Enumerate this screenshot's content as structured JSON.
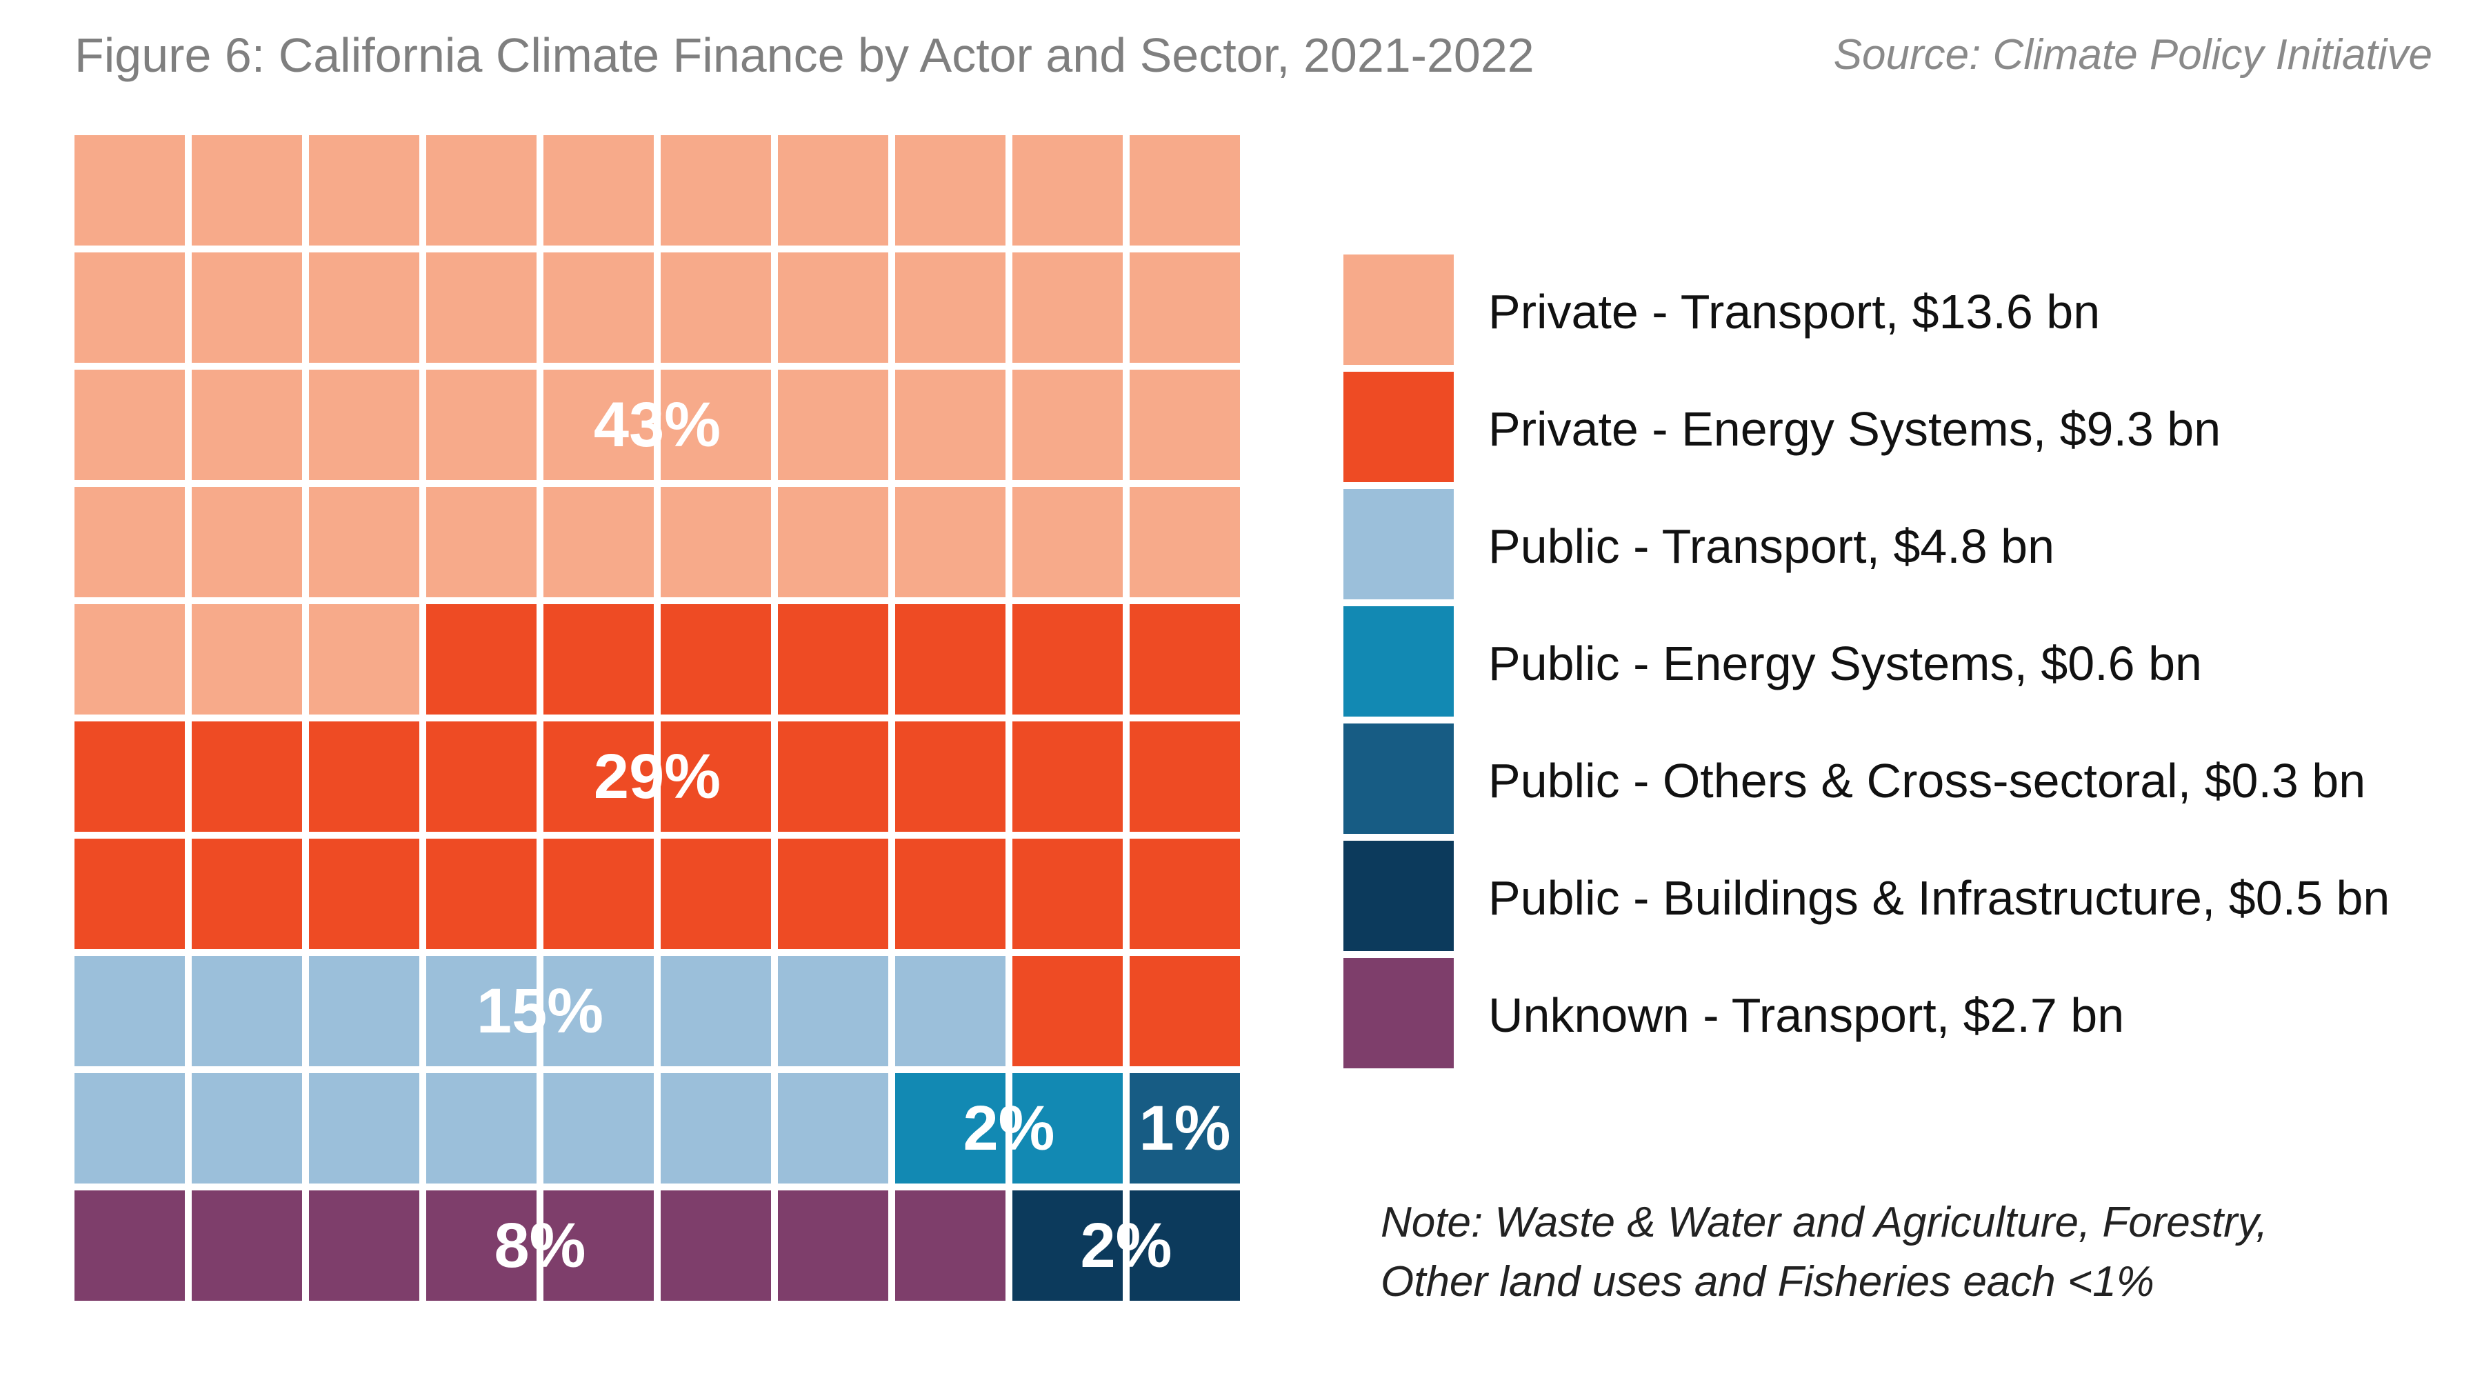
{
  "header": {
    "title": "Figure 6: California Climate Finance by Actor and Sector, 2021-2022",
    "source": "Source: Climate Policy Initiative"
  },
  "chart_data": {
    "type": "waffle",
    "grid": {
      "rows": 10,
      "cols": 10
    },
    "series": [
      {
        "name": "Private - Transport",
        "value_bn": 13.6,
        "units": 43,
        "percent_label": "43%",
        "color": "#f7aa8a",
        "legend_label": "Private - Transport, $13.6 bn"
      },
      {
        "name": "Private - Energy Systems",
        "value_bn": 9.3,
        "units": 29,
        "percent_label": "29%",
        "color": "#ee4b24",
        "legend_label": "Private - Energy Systems, $9.3 bn"
      },
      {
        "name": "Public - Transport",
        "value_bn": 4.8,
        "units": 15,
        "percent_label": "15%",
        "color": "#9bbfda",
        "legend_label": "Public - Transport, $4.8 bn"
      },
      {
        "name": "Public - Energy Systems",
        "value_bn": 0.6,
        "units": 2,
        "percent_label": "2%",
        "color": "#1289b3",
        "legend_label": "Public - Energy Systems, $0.6 bn"
      },
      {
        "name": "Public - Others & Cross-sectoral",
        "value_bn": 0.3,
        "units": 1,
        "percent_label": "1%",
        "color": "#175c84",
        "legend_label": "Public - Others & Cross-sectoral, $0.3 bn"
      },
      {
        "name": "Public - Buildings & Infrastructure",
        "value_bn": 0.5,
        "units": 2,
        "percent_label": "2%",
        "color": "#0c3a5c",
        "legend_label": "Public - Buildings & Infrastructure, $0.5 bn"
      },
      {
        "name": "Unknown - Transport",
        "value_bn": 2.7,
        "units": 8,
        "percent_label": "8%",
        "color": "#7e3e6b",
        "legend_label": "Unknown - Transport, $2.7 bn"
      }
    ],
    "cells": [
      [
        0,
        0,
        0,
        0,
        0,
        0,
        0,
        0,
        0,
        0
      ],
      [
        0,
        0,
        0,
        0,
        0,
        0,
        0,
        0,
        0,
        0
      ],
      [
        0,
        0,
        0,
        0,
        0,
        0,
        0,
        0,
        0,
        0
      ],
      [
        0,
        0,
        0,
        0,
        0,
        0,
        0,
        0,
        0,
        0
      ],
      [
        0,
        0,
        0,
        1,
        1,
        1,
        1,
        1,
        1,
        1
      ],
      [
        1,
        1,
        1,
        1,
        1,
        1,
        1,
        1,
        1,
        1
      ],
      [
        1,
        1,
        1,
        1,
        1,
        1,
        1,
        1,
        1,
        1
      ],
      [
        2,
        2,
        2,
        2,
        2,
        2,
        2,
        2,
        1,
        1
      ],
      [
        2,
        2,
        2,
        2,
        2,
        2,
        2,
        3,
        3,
        4
      ],
      [
        6,
        6,
        6,
        6,
        6,
        6,
        6,
        6,
        5,
        5
      ]
    ],
    "legend_position": "right"
  },
  "note": {
    "lines": [
      "Note: Waste & Water and Agriculture, Forestry,",
      "Other land uses and Fisheries each <1%"
    ]
  }
}
